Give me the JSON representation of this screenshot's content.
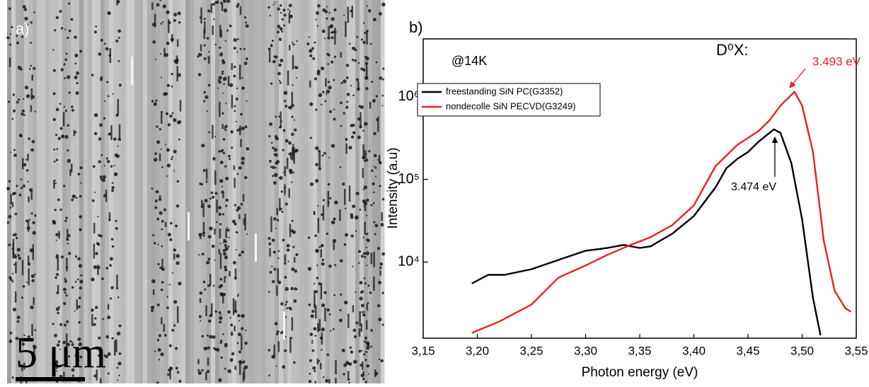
{
  "image_panel": {
    "label": "a)",
    "scale_bar": "5 μm"
  },
  "chart_data": {
    "type": "line",
    "panel_label": "b)",
    "x_label": "Photon energy (eV)",
    "y_label": "Intensity (a.u)",
    "yscale": "log",
    "xlim": [
      3.15,
      3.55
    ],
    "ylim": [
      1200,
      5000000
    ],
    "xticks": [
      {
        "value": 3.15,
        "label": "3,15"
      },
      {
        "value": 3.2,
        "label": "3,20"
      },
      {
        "value": 3.25,
        "label": "3,25"
      },
      {
        "value": 3.3,
        "label": "3,30"
      },
      {
        "value": 3.35,
        "label": "3,35"
      },
      {
        "value": 3.4,
        "label": "3,40"
      },
      {
        "value": 3.45,
        "label": "3,45"
      },
      {
        "value": 3.5,
        "label": "3,50"
      },
      {
        "value": 3.55,
        "label": "3,55"
      }
    ],
    "yticks": [
      {
        "value": 10000,
        "label": "10⁴"
      },
      {
        "value": 100000,
        "label": "10⁵"
      },
      {
        "value": 1000000,
        "label": "10⁶"
      }
    ],
    "legend": "upper left",
    "annotations": [
      "@14K",
      "D⁰X:",
      "3.493 eV",
      "3.474 eV"
    ],
    "series": [
      {
        "name": "freestanding SiN PC(G3352)",
        "color": "#000000",
        "x": [
          3.195,
          3.21,
          3.225,
          3.25,
          3.275,
          3.3,
          3.32,
          3.335,
          3.35,
          3.36,
          3.38,
          3.4,
          3.42,
          3.43,
          3.44,
          3.45,
          3.46,
          3.474,
          3.48,
          3.49,
          3.5,
          3.51,
          3.517
        ],
        "values": [
          5500,
          7000,
          7000,
          8200,
          10600,
          13700,
          14800,
          16100,
          14800,
          15500,
          22000,
          36000,
          80000,
          136000,
          176000,
          214000,
          288000,
          403000,
          365000,
          158000,
          32700,
          3700,
          1300
        ]
      },
      {
        "name": "nondecolle SiN PECVD(G3249)",
        "color": "#e8221f",
        "x": [
          3.195,
          3.22,
          3.25,
          3.275,
          3.3,
          3.32,
          3.34,
          3.36,
          3.38,
          3.4,
          3.42,
          3.44,
          3.46,
          3.47,
          3.48,
          3.493,
          3.5,
          3.51,
          3.52,
          3.53,
          3.54,
          3.545
        ],
        "values": [
          1390,
          1900,
          3060,
          6500,
          9100,
          12200,
          15800,
          20000,
          27900,
          48600,
          144000,
          260000,
          387000,
          520000,
          780000,
          1150000,
          780000,
          215000,
          18100,
          4500,
          2760,
          2500
        ]
      }
    ]
  }
}
